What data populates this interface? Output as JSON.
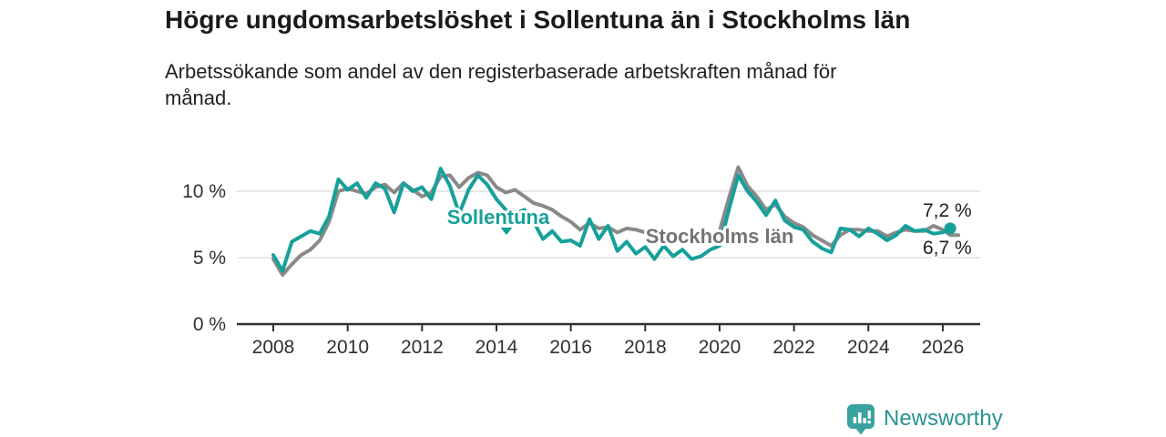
{
  "header": {
    "title": "Högre ungdomsarbetslöshet i Sollentuna än i Stockholms län",
    "subtitle": "Arbetssökande som andel av den registerbaserade arbetskraften månad för månad."
  },
  "footer": {
    "brand": "Newsworthy",
    "logo_icon": "newsworthy-speech-bubble-bars-icon"
  },
  "colors": {
    "sollentuna_teal": "#16a09a",
    "stockholm_gray": "#8a8a8a",
    "stockholm_label_gray": "#747474",
    "grid": "#d9d9d9",
    "axis": "#303030",
    "text": "#1e1e1e",
    "logo_icon": "#3aa3a0",
    "logo_text": "#2a9392"
  },
  "chart_data": {
    "type": "line",
    "title": "Högre ungdomsarbetslöshet i Sollentuna än i Stockholms län",
    "subtitle": "Arbetssökande som andel av den registerbaserade arbetskraften månad för månad.",
    "xlabel": "",
    "ylabel": "",
    "grid": "horizontal",
    "xlim": [
      2007.0,
      2027.0
    ],
    "ylim": [
      0,
      13.4
    ],
    "x_ticks": [
      {
        "value": 2008,
        "label": "2008"
      },
      {
        "value": 2010,
        "label": "2010"
      },
      {
        "value": 2012,
        "label": "2012"
      },
      {
        "value": 2014,
        "label": "2014"
      },
      {
        "value": 2016,
        "label": "2016"
      },
      {
        "value": 2018,
        "label": "2018"
      },
      {
        "value": 2020,
        "label": "2020"
      },
      {
        "value": 2022,
        "label": "2022"
      },
      {
        "value": 2024,
        "label": "2024"
      },
      {
        "value": 2026,
        "label": "2026"
      }
    ],
    "y_ticks": [
      {
        "value": 0,
        "label": "0 %"
      },
      {
        "value": 5,
        "label": "5 %"
      },
      {
        "value": 10,
        "label": "10 %"
      }
    ],
    "x": [
      2008.0,
      2008.25,
      2008.5,
      2008.75,
      2009.0,
      2009.25,
      2009.5,
      2009.75,
      2010.0,
      2010.25,
      2010.5,
      2010.75,
      2011.0,
      2011.25,
      2011.5,
      2011.75,
      2012.0,
      2012.25,
      2012.5,
      2012.75,
      2013.0,
      2013.25,
      2013.5,
      2013.75,
      2014.0,
      2014.25,
      2014.5,
      2014.75,
      2015.0,
      2015.25,
      2015.5,
      2015.75,
      2016.0,
      2016.25,
      2016.5,
      2016.75,
      2017.0,
      2017.25,
      2017.5,
      2017.75,
      2018.0,
      2018.25,
      2018.5,
      2018.75,
      2019.0,
      2019.25,
      2019.5,
      2019.75,
      2020.0,
      2020.25,
      2020.5,
      2020.75,
      2021.0,
      2021.25,
      2021.5,
      2021.75,
      2022.0,
      2022.25,
      2022.5,
      2022.75,
      2023.0,
      2023.25,
      2023.5,
      2023.75,
      2024.0,
      2024.25,
      2024.5,
      2024.75,
      2025.0,
      2025.25,
      2025.5,
      2025.75,
      2026.0,
      2026.2
    ],
    "series": [
      {
        "name": "Sollentuna",
        "color": "#16a09a",
        "end_label": "7,2 %",
        "end_value": 7.2,
        "end_dot": true,
        "values": [
          5.2,
          4.0,
          6.2,
          6.6,
          7.0,
          6.8,
          8.1,
          10.9,
          10.1,
          10.6,
          9.5,
          10.6,
          10.2,
          8.4,
          10.6,
          10.0,
          10.3,
          9.4,
          11.7,
          10.4,
          8.3,
          10.1,
          11.2,
          10.5,
          9.4,
          8.6,
          8.3,
          8.6,
          7.7,
          6.4,
          7.0,
          6.2,
          6.3,
          5.9,
          7.9,
          6.4,
          7.4,
          5.5,
          6.2,
          5.3,
          5.8,
          4.9,
          5.9,
          5.1,
          5.6,
          4.9,
          5.1,
          5.6,
          5.9,
          8.6,
          11.2,
          10.0,
          9.2,
          8.2,
          9.3,
          7.8,
          7.3,
          7.1,
          6.2,
          5.7,
          5.4,
          7.2,
          7.1,
          6.6,
          7.2,
          6.8,
          6.3,
          6.7,
          7.4,
          7.0,
          7.1,
          6.8,
          6.9,
          7.2
        ]
      },
      {
        "name": "Stockholms län",
        "color": "#8a8a8a",
        "end_label": "6,7 %",
        "end_value": 6.7,
        "end_dot": false,
        "values": [
          4.9,
          3.7,
          4.5,
          5.2,
          5.6,
          6.3,
          7.7,
          10.0,
          10.2,
          10.0,
          9.8,
          10.3,
          10.5,
          9.9,
          10.6,
          10.1,
          9.6,
          9.9,
          11.1,
          11.2,
          10.3,
          11.0,
          11.4,
          11.2,
          10.3,
          9.9,
          10.1,
          9.6,
          9.1,
          8.9,
          8.6,
          8.1,
          7.7,
          7.1,
          7.6,
          7.2,
          7.3,
          6.9,
          7.2,
          7.1,
          6.9,
          6.3,
          6.5,
          6.4,
          6.3,
          6.5,
          6.1,
          6.6,
          7.0,
          9.5,
          11.8,
          10.4,
          9.6,
          8.6,
          9.0,
          8.1,
          7.6,
          7.3,
          6.7,
          6.3,
          5.9,
          6.7,
          7.1,
          7.1,
          7.0,
          7.0,
          6.6,
          6.9,
          7.1,
          7.0,
          7.0,
          7.4,
          7.1,
          6.7
        ]
      }
    ],
    "legend_position": "inline-labels"
  }
}
